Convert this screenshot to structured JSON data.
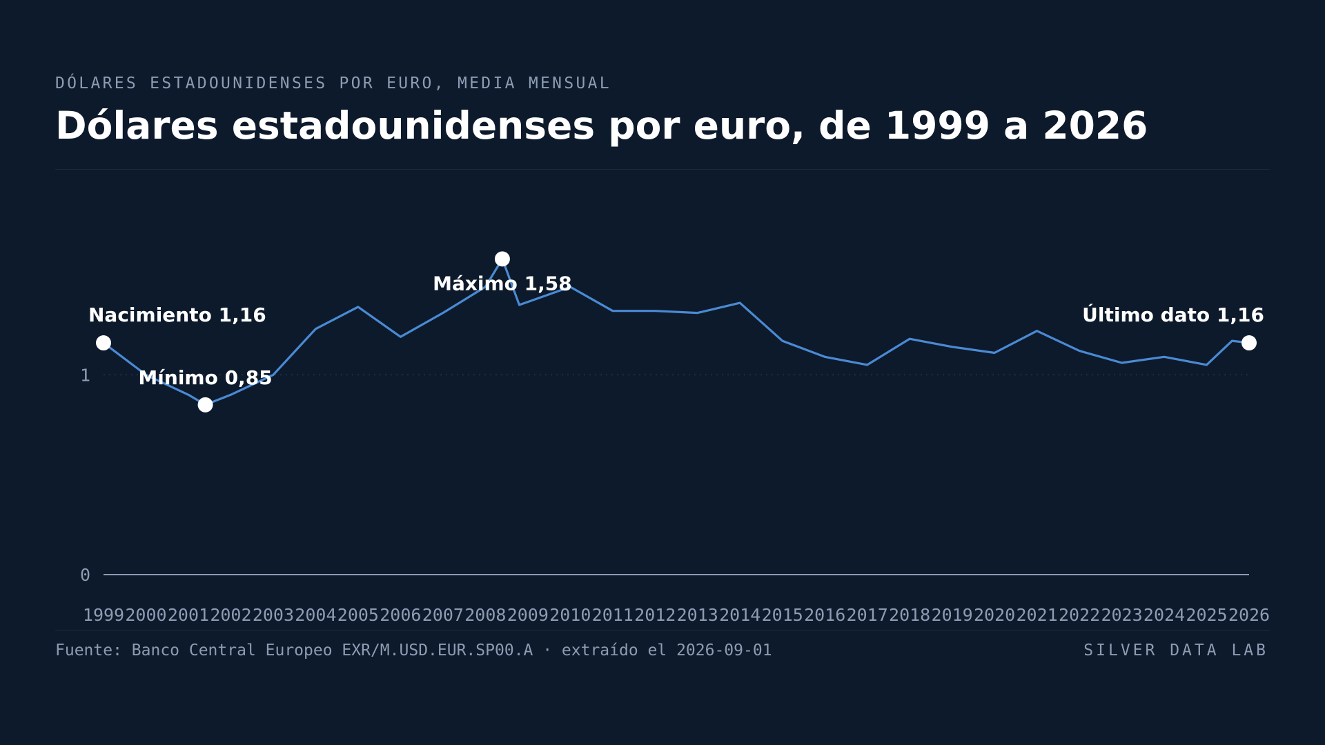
{
  "header": {
    "kicker": "DÓLARES ESTADOUNIDENSES POR EURO, MEDIA MENSUAL",
    "title": "Dólares estadounidenses por euro, de 1999 a 2026"
  },
  "footer": {
    "source": "Fuente: Banco Central Europeo EXR/M.USD.EUR.SP00.A · extraído el 2026-09-01",
    "brand": "SILVER DATA LAB"
  },
  "colors": {
    "background": "#0d1a2b",
    "line": "#4a8ad4",
    "marker": "#ffffff",
    "axis": "#8d9cb3",
    "text": "#ffffff"
  },
  "chart_data": {
    "type": "line",
    "title": "Dólares estadounidenses por euro, de 1999 a 2026",
    "xlabel": "",
    "ylabel": "",
    "xlim": [
      1999,
      2026
    ],
    "ylim": [
      0,
      1.6
    ],
    "yticks": [
      0,
      1
    ],
    "ytick_labels": [
      "0",
      "1"
    ],
    "xticks": [
      1999,
      2000,
      2001,
      2002,
      2003,
      2004,
      2005,
      2006,
      2007,
      2008,
      2009,
      2010,
      2011,
      2012,
      2013,
      2014,
      2015,
      2016,
      2017,
      2018,
      2019,
      2020,
      2021,
      2022,
      2023,
      2024,
      2025,
      2026
    ],
    "xtick_labels": [
      "1999",
      "2000",
      "2001",
      "2002",
      "2003",
      "2004",
      "2005",
      "2006",
      "2007",
      "2008",
      "2009",
      "2010",
      "2011",
      "2012",
      "2013",
      "2014",
      "2015",
      "2016",
      "2017",
      "2018",
      "2019",
      "2020",
      "2021",
      "2022",
      "2023",
      "2024",
      "2025",
      "2026"
    ],
    "grid": "dotted line at 1",
    "series": [
      {
        "x": [
          1999,
          2000,
          2001,
          2001.4,
          2002,
          2003,
          2004,
          2005,
          2006,
          2007,
          2008,
          2008.4,
          2008.8,
          2010,
          2011,
          2012,
          2013,
          2014,
          2015,
          2016,
          2017,
          2018,
          2019,
          2020,
          2021,
          2022,
          2023,
          2024,
          2025,
          2025.6,
          2026
        ],
        "y": [
          1.16,
          1.0,
          0.9,
          0.85,
          0.9,
          1.0,
          1.23,
          1.34,
          1.19,
          1.31,
          1.44,
          1.58,
          1.35,
          1.44,
          1.32,
          1.32,
          1.31,
          1.36,
          1.17,
          1.09,
          1.05,
          1.18,
          1.14,
          1.11,
          1.22,
          1.12,
          1.06,
          1.09,
          1.05,
          1.17,
          1.16
        ]
      }
    ],
    "annotations": [
      {
        "label": "Nacimiento 1,16",
        "x": 1999,
        "y": 1.16
      },
      {
        "label": "Mínimo 0,85",
        "x": 2001.4,
        "y": 0.85
      },
      {
        "label": "Máximo 1,58",
        "x": 2008.4,
        "y": 1.58
      },
      {
        "label": "Último dato 1,16",
        "x": 2026,
        "y": 1.16
      }
    ]
  }
}
